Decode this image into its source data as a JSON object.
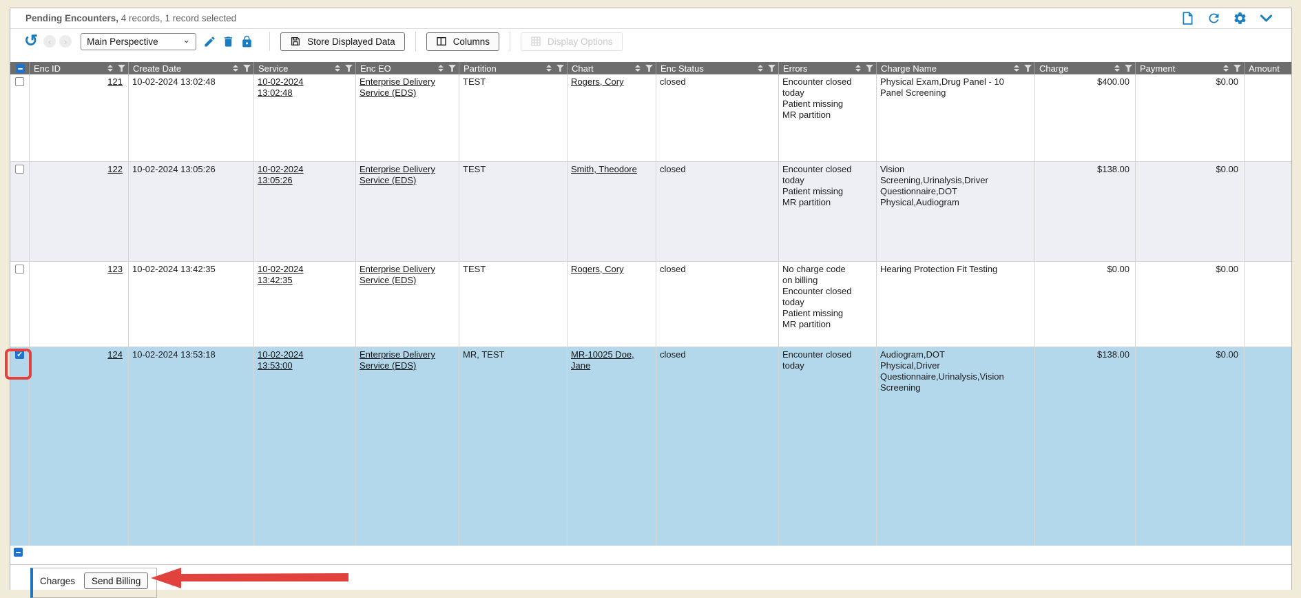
{
  "title_bar": {
    "title_bold": "Pending Encounters,",
    "title_rest": " 4 records, 1 record selected",
    "icons": [
      "new-document",
      "refresh",
      "settings-gear",
      "collapse-chevron"
    ]
  },
  "toolbar": {
    "perspective_value": "Main Perspective",
    "store_button": "Store Displayed Data",
    "columns_button": "Columns",
    "display_options_button": "Display Options",
    "icons": [
      "undo",
      "previous",
      "next",
      "edit-pencil",
      "delete-trash",
      "lock"
    ]
  },
  "table": {
    "select_all_state": "indeterminate",
    "columns": [
      {
        "key": "enc_id",
        "label": "Enc ID"
      },
      {
        "key": "create_date",
        "label": "Create Date"
      },
      {
        "key": "service",
        "label": "Service"
      },
      {
        "key": "enc_eo",
        "label": "Enc EO"
      },
      {
        "key": "partition",
        "label": "Partition"
      },
      {
        "key": "chart",
        "label": "Chart"
      },
      {
        "key": "enc_status",
        "label": "Enc Status"
      },
      {
        "key": "errors",
        "label": "Errors"
      },
      {
        "key": "charge_name",
        "label": "Charge Name"
      },
      {
        "key": "charge",
        "label": "Charge"
      },
      {
        "key": "payment",
        "label": "Payment"
      },
      {
        "key": "amount",
        "label": "Amount"
      }
    ],
    "rows": [
      {
        "selected": false,
        "checked": false,
        "enc_id": "121",
        "create_date": "10-02-2024 13:02:48",
        "service": "10-02-2024 13:02:48",
        "enc_eo": "Enterprise Delivery Service (EDS)",
        "partition": "TEST",
        "chart": "Rogers, Cory",
        "enc_status": "closed",
        "errors": [
          "Encounter closed today",
          "Patient missing",
          "MR partition"
        ],
        "charge_name": "Physical Exam,Drug Panel - 10 Panel Screening",
        "charge": "$400.00",
        "payment": "$0.00",
        "amount": ""
      },
      {
        "selected": false,
        "checked": false,
        "enc_id": "122",
        "create_date": "10-02-2024 13:05:26",
        "service": "10-02-2024 13:05:26",
        "enc_eo": "Enterprise Delivery Service (EDS)",
        "partition": "TEST",
        "chart": "Smith, Theodore",
        "enc_status": "closed",
        "errors": [
          "Encounter closed today",
          "Patient missing",
          "MR partition"
        ],
        "charge_name": "Vision Screening,Urinalysis,Driver Questionnaire,DOT Physical,Audiogram",
        "charge": "$138.00",
        "payment": "$0.00",
        "amount": ""
      },
      {
        "selected": false,
        "checked": false,
        "enc_id": "123",
        "create_date": "10-02-2024 13:42:35",
        "service": "10-02-2024 13:42:35",
        "enc_eo": "Enterprise Delivery Service (EDS)",
        "partition": "TEST",
        "chart": "Rogers, Cory",
        "enc_status": "closed",
        "errors": [
          "No charge code on billing",
          "Encounter closed today",
          "Patient missing",
          "MR partition"
        ],
        "charge_name": "Hearing Protection Fit Testing",
        "charge": "$0.00",
        "payment": "$0.00",
        "amount": ""
      },
      {
        "selected": true,
        "checked": true,
        "enc_id": "124",
        "create_date": "10-02-2024 13:53:18",
        "service": "10-02-2024 13:53:00",
        "enc_eo": "Enterprise Delivery Service (EDS)",
        "partition": "MR, TEST",
        "chart": "MR-10025 Doe, Jane",
        "enc_status": "closed",
        "errors": [
          "Encounter closed today"
        ],
        "charge_name": "Audiogram,DOT Physical,Driver Questionnaire,Urinalysis,Vision Screening",
        "charge": "$138.00",
        "payment": "$0.00",
        "amount": ""
      }
    ]
  },
  "footer": {
    "charges_label": "Charges",
    "send_billing_button": "Send Billing"
  },
  "colors": {
    "accent_blue": "#1a7dc1",
    "checkbox_blue": "#1e73d2",
    "selection_blue": "#b4d8eb",
    "header_gray": "#6d6d6d",
    "annotation_red": "#e2423d",
    "page_background": "#f1ecda"
  }
}
